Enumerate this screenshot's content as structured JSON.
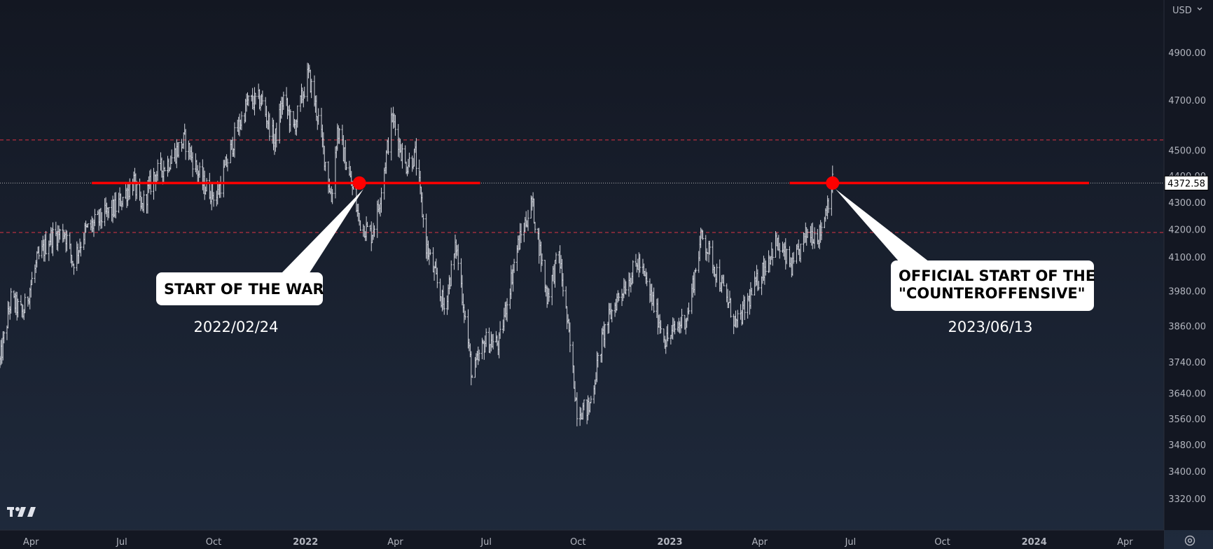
{
  "chart_data": {
    "type": "ohlc",
    "currency_label": "USD",
    "last_price_label": "4372.58",
    "y_scale": "log",
    "ylim": [
      3250,
      5080
    ],
    "y_ticks": [
      "4900.00",
      "4700.00",
      "4500.00",
      "4400.00",
      "4300.00",
      "4200.00",
      "4100.00",
      "3980.00",
      "3860.00",
      "3740.00",
      "3640.00",
      "3560.00",
      "3480.00",
      "3400.00",
      "3320.00"
    ],
    "x_range": [
      "2021-03-01",
      "2024-05-10"
    ],
    "x_ticks": [
      {
        "label": "Apr",
        "date": "2021-04-01",
        "bold": false
      },
      {
        "label": "Jul",
        "date": "2021-07-01",
        "bold": false
      },
      {
        "label": "Oct",
        "date": "2021-10-01",
        "bold": false
      },
      {
        "label": "2022",
        "date": "2022-01-01",
        "bold": true
      },
      {
        "label": "Apr",
        "date": "2022-04-01",
        "bold": false
      },
      {
        "label": "Jul",
        "date": "2022-07-01",
        "bold": false
      },
      {
        "label": "Oct",
        "date": "2022-10-01",
        "bold": false
      },
      {
        "label": "2023",
        "date": "2023-01-01",
        "bold": true
      },
      {
        "label": "Apr",
        "date": "2023-04-01",
        "bold": false
      },
      {
        "label": "Jul",
        "date": "2023-07-01",
        "bold": false
      },
      {
        "label": "Oct",
        "date": "2023-10-01",
        "bold": false
      },
      {
        "label": "2024",
        "date": "2024-01-01",
        "bold": true
      },
      {
        "label": "Apr",
        "date": "2024-04-01",
        "bold": false
      }
    ],
    "price_path": [
      [
        "2021-03-01",
        3740
      ],
      [
        "2021-03-12",
        3950
      ],
      [
        "2021-03-24",
        3900
      ],
      [
        "2021-04-07",
        4080
      ],
      [
        "2021-04-20",
        4170
      ],
      [
        "2021-05-05",
        4190
      ],
      [
        "2021-05-13",
        4080
      ],
      [
        "2021-05-25",
        4190
      ],
      [
        "2021-06-10",
        4240
      ],
      [
        "2021-06-25",
        4280
      ],
      [
        "2021-07-13",
        4380
      ],
      [
        "2021-07-20",
        4270
      ],
      [
        "2021-08-02",
        4400
      ],
      [
        "2021-08-16",
        4450
      ],
      [
        "2021-09-02",
        4540
      ],
      [
        "2021-09-20",
        4370
      ],
      [
        "2021-10-04",
        4320
      ],
      [
        "2021-10-22",
        4550
      ],
      [
        "2021-11-04",
        4690
      ],
      [
        "2021-11-18",
        4700
      ],
      [
        "2021-12-01",
        4530
      ],
      [
        "2021-12-10",
        4710
      ],
      [
        "2021-12-20",
        4580
      ],
      [
        "2022-01-04",
        4810
      ],
      [
        "2022-01-14",
        4620
      ],
      [
        "2022-01-27",
        4310
      ],
      [
        "2022-02-02",
        4580
      ],
      [
        "2022-02-14",
        4400
      ],
      [
        "2022-02-24",
        4230
      ],
      [
        "2022-03-08",
        4180
      ],
      [
        "2022-03-15",
        4280
      ],
      [
        "2022-03-29",
        4630
      ],
      [
        "2022-04-11",
        4440
      ],
      [
        "2022-04-21",
        4480
      ],
      [
        "2022-05-02",
        4140
      ],
      [
        "2022-05-20",
        3920
      ],
      [
        "2022-06-01",
        4140
      ],
      [
        "2022-06-17",
        3690
      ],
      [
        "2022-06-30",
        3810
      ],
      [
        "2022-07-14",
        3800
      ],
      [
        "2022-08-01",
        4130
      ],
      [
        "2022-08-16",
        4300
      ],
      [
        "2022-08-31",
        3960
      ],
      [
        "2022-09-12",
        4110
      ],
      [
        "2022-09-30",
        3590
      ],
      [
        "2022-10-12",
        3590
      ],
      [
        "2022-10-27",
        3840
      ],
      [
        "2022-11-10",
        3960
      ],
      [
        "2022-12-01",
        4080
      ],
      [
        "2022-12-28",
        3810
      ],
      [
        "2023-01-19",
        3900
      ],
      [
        "2023-02-02",
        4180
      ],
      [
        "2023-02-24",
        3980
      ],
      [
        "2023-03-09",
        3860
      ],
      [
        "2023-03-24",
        3970
      ],
      [
        "2023-04-17",
        4150
      ],
      [
        "2023-05-04",
        4060
      ],
      [
        "2023-05-19",
        4190
      ],
      [
        "2023-05-31",
        4180
      ],
      [
        "2023-06-13",
        4372.58
      ]
    ],
    "horizontal_levels": [
      {
        "value": 4372.58,
        "style": "dotted-white"
      },
      {
        "value": 4540,
        "style": "dashed-red"
      },
      {
        "value": 4188,
        "style": "dashed-red"
      }
    ],
    "reference_segments": [
      {
        "value": 4372.58,
        "from": "2021-06-01",
        "to": "2022-06-25",
        "color": "#ff0000"
      },
      {
        "value": 4372.58,
        "from": "2023-05-01",
        "to": "2024-02-25",
        "color": "#ff0000"
      }
    ],
    "events": [
      {
        "date": "2022-02-24",
        "value": 4372.58,
        "label_lines": [
          "START OF THE WAR"
        ],
        "date_label": "2022/02/24"
      },
      {
        "date": "2023-06-13",
        "value": 4372.58,
        "label_lines": [
          "OFFICIAL START OF THE",
          "\"COUNTEROFFENSIVE\""
        ],
        "date_label": "2023/06/13"
      }
    ],
    "colors": {
      "background_top": "#131722",
      "background_bottom": "#1f2a3c",
      "bars": "#d1d4dc",
      "event_marker": "#ff0000",
      "level_dashed": "#f23645",
      "axis_text": "#b2b5be",
      "callout_bg": "#ffffff",
      "callout_text": "#000000"
    },
    "logo": "TV",
    "settings_icon": "gear-icon"
  }
}
